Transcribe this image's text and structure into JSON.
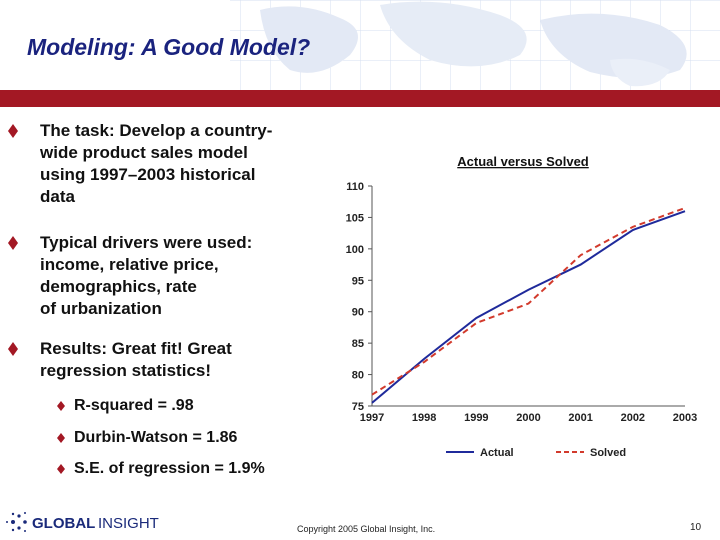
{
  "slide": {
    "title": "Modeling: A Good Model?"
  },
  "bullets": [
    {
      "lines": [
        "The task: Develop a country-",
        "wide product sales model",
        "using 1997–2003 historical",
        "data"
      ]
    },
    {
      "lines": [
        "Typical drivers were used:",
        "income, relative price,",
        "demographics, rate",
        "of urbanization"
      ]
    },
    {
      "lines": [
        "Results: Great fit!  Great",
        "regression statistics!"
      ]
    }
  ],
  "sub_bullets": [
    "R-squared = .98",
    "Durbin-Watson = 1.86",
    "S.E. of regression = 1.9%"
  ],
  "chart_data": {
    "type": "line",
    "title": "Actual versus Solved",
    "xlabel": "",
    "ylabel": "",
    "categories": [
      "1997",
      "1998",
      "1999",
      "2000",
      "2001",
      "2002",
      "2003"
    ],
    "y_ticks": [
      75,
      80,
      85,
      90,
      95,
      100,
      105,
      110
    ],
    "ylim": [
      75,
      110
    ],
    "series": [
      {
        "name": "Actual",
        "color": "#1f2a9b",
        "dash": false,
        "values": [
          75.5,
          82.5,
          89,
          93.5,
          97.5,
          103,
          106
        ]
      },
      {
        "name": "Solved",
        "color": "#d23a2c",
        "dash": true,
        "values": [
          76.8,
          82,
          88.2,
          91.3,
          99,
          103.5,
          106.5
        ]
      }
    ],
    "legend": "bottom"
  },
  "footer": {
    "logo_left": "GLOBAL",
    "logo_right": "INSIGHT",
    "copyright": "Copyright 2005 Global Insight, Inc.",
    "page_number": "10"
  },
  "colors": {
    "title": "#1a237e",
    "bar": "#a31824",
    "bullet_mark": "#a31824"
  }
}
